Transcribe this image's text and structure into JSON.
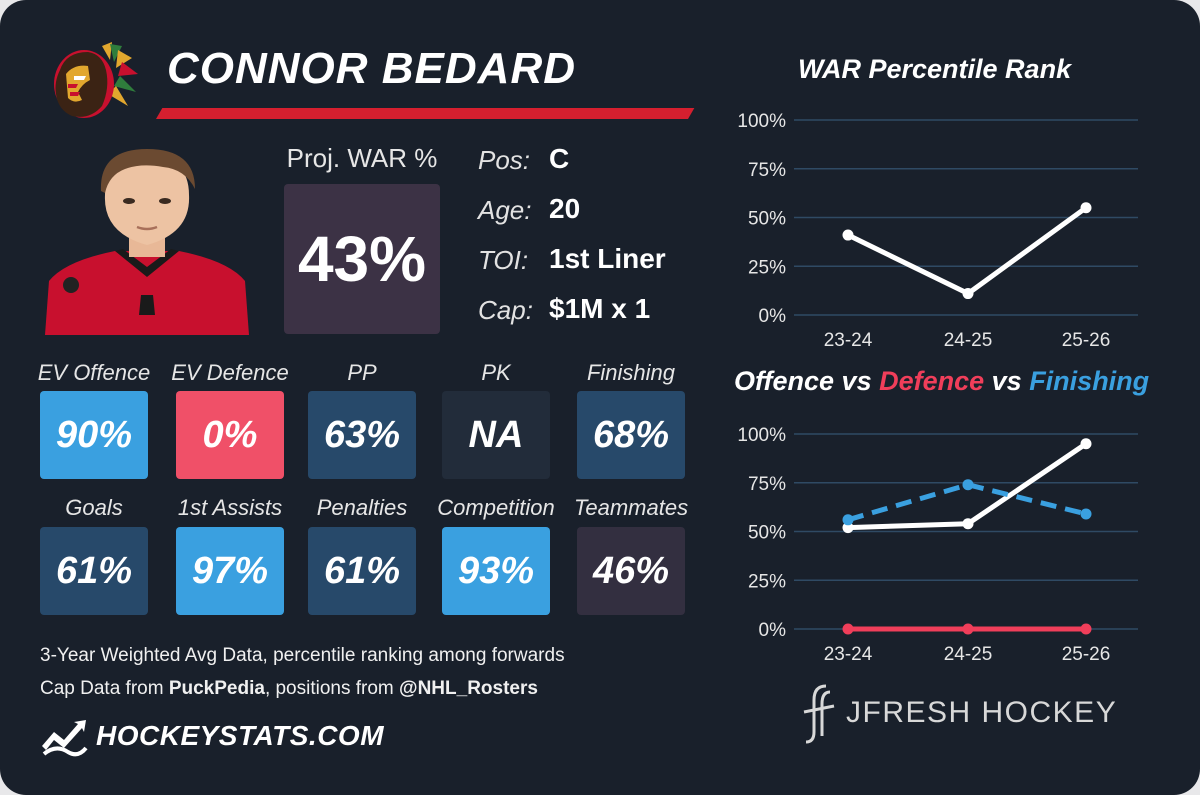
{
  "player": {
    "name": "CONNOR BEDARD",
    "team_logo_icon": "blackhawks-logo-icon",
    "proj_war_label": "Proj. WAR %",
    "proj_war_value": "43%",
    "info": [
      {
        "label": "Pos:",
        "value": "C"
      },
      {
        "label": "Age:",
        "value": "20"
      },
      {
        "label": "TOI:",
        "value": "1st Liner"
      },
      {
        "label": "Cap:",
        "value": "$1M x 1"
      }
    ]
  },
  "stats": [
    {
      "label": "EV Offence",
      "value": "90%",
      "color": "#3aa0e0"
    },
    {
      "label": "EV Defence",
      "value": "0%",
      "color": "#f05068"
    },
    {
      "label": "PP",
      "value": "63%",
      "color": "#27496a"
    },
    {
      "label": "PK",
      "value": "NA",
      "color": "#222c3a"
    },
    {
      "label": "Finishing",
      "value": "68%",
      "color": "#27496a"
    },
    {
      "label": "Goals",
      "value": "61%",
      "color": "#27496a"
    },
    {
      "label": "1st Assists",
      "value": "97%",
      "color": "#3aa0e0"
    },
    {
      "label": "Penalties",
      "value": "61%",
      "color": "#27496a"
    },
    {
      "label": "Competition",
      "value": "93%",
      "color": "#3aa0e0"
    },
    {
      "label": "Teammates",
      "value": "46%",
      "color": "#332f40"
    }
  ],
  "footer": {
    "line1": "3-Year Weighted Avg Data, percentile ranking among forwards",
    "line2_prefix": "Cap Data from ",
    "line2_source1": "PuckPedia",
    "line2_middle": ", positions from ",
    "line2_source2": "@NHL_Rosters",
    "brand": "HOCKEYSTATS.COM",
    "brand_icon": "hockeystats-logo-icon",
    "credit": "JFRESH HOCKEY",
    "credit_icon": "jfresh-logo-icon"
  },
  "colors": {
    "background": "#19202b",
    "accent_red": "#d51f2f",
    "offence": "#ffffff",
    "defence": "#f03e5a",
    "finishing": "#3aa0e0"
  },
  "chart_data": [
    {
      "type": "line",
      "title": "WAR Percentile Rank",
      "categories": [
        "23-24",
        "24-25",
        "25-26"
      ],
      "series": [
        {
          "values": [
            41,
            11,
            55
          ],
          "color": "#ffffff",
          "style": "solid"
        }
      ],
      "yticks": [
        "0%",
        "25%",
        "50%",
        "75%",
        "100%"
      ],
      "ylim": [
        0,
        100
      ],
      "grid": true
    },
    {
      "type": "line",
      "title_parts": {
        "offence": "Offence",
        "vs1": " vs ",
        "defence": "Defence",
        "vs2": " vs ",
        "finishing": "Finishing"
      },
      "categories": [
        "23-24",
        "24-25",
        "25-26"
      ],
      "series": [
        {
          "key": "offence",
          "values": [
            52,
            54,
            95
          ],
          "color": "#ffffff",
          "style": "solid"
        },
        {
          "key": "defence",
          "values": [
            0,
            0,
            0
          ],
          "color": "#f03e5a",
          "style": "solid"
        },
        {
          "key": "finishing",
          "values": [
            56,
            74,
            59
          ],
          "color": "#3aa0e0",
          "style": "dashed"
        }
      ],
      "yticks": [
        "0%",
        "25%",
        "50%",
        "75%",
        "100%"
      ],
      "ylim": [
        0,
        100
      ],
      "grid": true
    }
  ]
}
